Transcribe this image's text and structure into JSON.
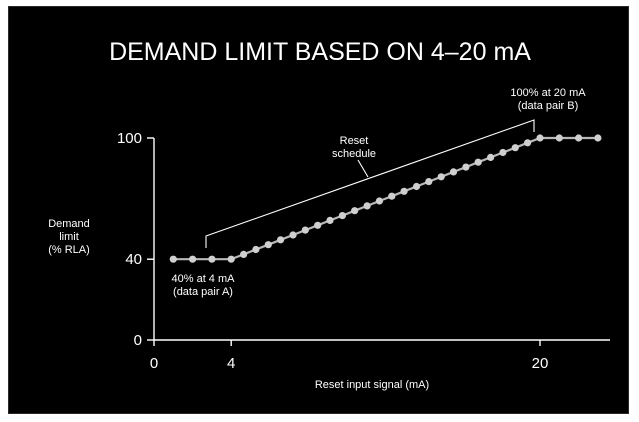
{
  "chart_data": {
    "type": "line",
    "title": "DEMAND LIMIT BASED ON 4–20 mA",
    "xlabel": "Reset input signal (mA)",
    "ylabel": [
      "Demand",
      "limit",
      "(% RLA)"
    ],
    "xlim": [
      0,
      22
    ],
    "ylim": [
      0,
      100
    ],
    "x_ticks": [
      0,
      4,
      20
    ],
    "y_ticks": [
      0,
      40,
      100
    ],
    "series": [
      {
        "x": [
          1,
          2,
          3,
          4,
          4.64,
          5.28,
          5.92,
          6.56,
          7.2,
          7.84,
          8.48,
          9.12,
          9.76,
          10.4,
          11.04,
          11.68,
          12.32,
          12.96,
          13.6,
          14.24,
          14.88,
          15.52,
          16.16,
          16.8,
          17.44,
          18.08,
          18.72,
          19.36,
          20,
          21,
          22,
          23
        ],
        "y": [
          40,
          40,
          40,
          40,
          42.4,
          44.8,
          47.2,
          49.6,
          52,
          54.4,
          56.8,
          59.2,
          61.6,
          64,
          66.4,
          68.8,
          71.2,
          73.6,
          76,
          78.4,
          80.8,
          83.2,
          85.6,
          88,
          90.4,
          92.8,
          95.2,
          97.6,
          100,
          100,
          100,
          100
        ]
      }
    ],
    "annotations": [
      {
        "lines": [
          "40% at 4 mA",
          "(data pair A)"
        ]
      },
      {
        "lines": [
          "100% at 20 mA",
          "(data pair B)"
        ]
      },
      {
        "lines": [
          "Reset",
          "schedule"
        ]
      }
    ],
    "grid": false,
    "background": "#000000",
    "text_color": "#ffffff",
    "line_color": "#b8b8b8"
  }
}
